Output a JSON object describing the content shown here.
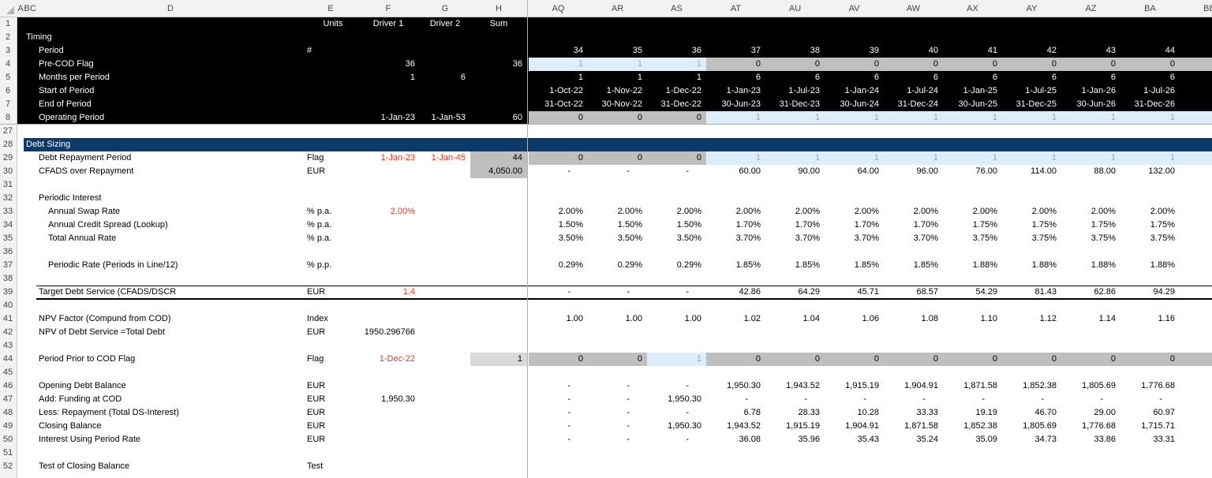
{
  "columns": [
    "A",
    "B",
    "C",
    "D",
    "E",
    "F",
    "G",
    "H",
    "AQ",
    "AR",
    "AS",
    "AT",
    "AU",
    "AV",
    "AW",
    "AX",
    "AY",
    "AZ",
    "BA",
    "BB"
  ],
  "rows": [
    {
      "row": "1",
      "cells": {
        "E": "Units",
        "F": "Driver 1",
        "G": "Driver 2",
        "H": "Sum"
      }
    },
    {
      "row": "2",
      "cells": {
        "B": "Timing"
      }
    },
    {
      "row": "3",
      "cells": {
        "D": "Period",
        "E": "#",
        "AQ": "34",
        "AR": "35",
        "AS": "36",
        "AT": "37",
        "AU": "38",
        "AV": "39",
        "AW": "40",
        "AX": "41",
        "AY": "42",
        "AZ": "43",
        "BA": "44"
      }
    },
    {
      "row": "4",
      "cells": {
        "D": "Pre-COD Flag",
        "F": "36",
        "H": "36",
        "AQ": "1",
        "AR": "1",
        "AS": "1",
        "AT": "0",
        "AU": "0",
        "AV": "0",
        "AW": "0",
        "AX": "0",
        "AY": "0",
        "AZ": "0",
        "BA": "0"
      }
    },
    {
      "row": "5",
      "cells": {
        "D": "Months per Period",
        "F": "1",
        "G": "6",
        "AQ": "1",
        "AR": "1",
        "AS": "1",
        "AT": "6",
        "AU": "6",
        "AV": "6",
        "AW": "6",
        "AX": "6",
        "AY": "6",
        "AZ": "6",
        "BA": "6"
      }
    },
    {
      "row": "6",
      "cells": {
        "D": "Start of Period",
        "AQ": "1-Oct-22",
        "AR": "1-Nov-22",
        "AS": "1-Dec-22",
        "AT": "1-Jan-23",
        "AU": "1-Jul-23",
        "AV": "1-Jan-24",
        "AW": "1-Jul-24",
        "AX": "1-Jan-25",
        "AY": "1-Jul-25",
        "AZ": "1-Jan-26",
        "BA": "1-Jul-26"
      }
    },
    {
      "row": "7",
      "cells": {
        "D": "End of Period",
        "AQ": "31-Oct-22",
        "AR": "30-Nov-22",
        "AS": "31-Dec-22",
        "AT": "30-Jun-23",
        "AU": "31-Dec-23",
        "AV": "30-Jun-24",
        "AW": "31-Dec-24",
        "AX": "30-Jun-25",
        "AY": "31-Dec-25",
        "AZ": "30-Jun-26",
        "BA": "31-Dec-26"
      }
    },
    {
      "row": "8",
      "cells": {
        "D": "Operating Period",
        "F": "1-Jan-23",
        "G": "1-Jan-53",
        "H": "60",
        "AQ": "0",
        "AR": "0",
        "AS": "0",
        "AT": "1",
        "AU": "1",
        "AV": "1",
        "AW": "1",
        "AX": "1",
        "AY": "1",
        "AZ": "1",
        "BA": "1"
      }
    },
    {
      "row": "27",
      "cells": {}
    },
    {
      "row": "28",
      "cells": {
        "B": "Debt Sizing"
      }
    },
    {
      "row": "29",
      "cells": {
        "D": "Debt Repayment Period",
        "E": "Flag",
        "F": "1-Jan-23",
        "G": "1-Jan-45",
        "H": "44",
        "AQ": "0",
        "AR": "0",
        "AS": "0",
        "AT": "1",
        "AU": "1",
        "AV": "1",
        "AW": "1",
        "AX": "1",
        "AY": "1",
        "AZ": "1",
        "BA": "1"
      }
    },
    {
      "row": "30",
      "cells": {
        "D": "CFADS over Repayment",
        "E": "EUR",
        "H": "4,050.00",
        "AQ": "-",
        "AR": "-",
        "AS": "-",
        "AT": "60.00",
        "AU": "90.00",
        "AV": "64.00",
        "AW": "96.00",
        "AX": "76.00",
        "AY": "114.00",
        "AZ": "88.00",
        "BA": "132.00"
      }
    },
    {
      "row": "31",
      "cells": {}
    },
    {
      "row": "32",
      "cells": {
        "D": "Periodic Interest"
      }
    },
    {
      "row": "33",
      "cells": {
        "D": "Annual Swap Rate",
        "E": "% p.a.",
        "F": "2.00%",
        "AQ": "2.00%",
        "AR": "2.00%",
        "AS": "2.00%",
        "AT": "2.00%",
        "AU": "2.00%",
        "AV": "2.00%",
        "AW": "2.00%",
        "AX": "2.00%",
        "AY": "2.00%",
        "AZ": "2.00%",
        "BA": "2.00%"
      }
    },
    {
      "row": "34",
      "cells": {
        "D": "Annual Credit Spread (Lookup)",
        "E": "% p.a.",
        "AQ": "1.50%",
        "AR": "1.50%",
        "AS": "1.50%",
        "AT": "1.70%",
        "AU": "1.70%",
        "AV": "1.70%",
        "AW": "1.70%",
        "AX": "1.75%",
        "AY": "1.75%",
        "AZ": "1.75%",
        "BA": "1.75%"
      }
    },
    {
      "row": "35",
      "cells": {
        "D": "Total Annual Rate",
        "E": "% p.a.",
        "AQ": "3.50%",
        "AR": "3.50%",
        "AS": "3.50%",
        "AT": "3.70%",
        "AU": "3.70%",
        "AV": "3.70%",
        "AW": "3.70%",
        "AX": "3.75%",
        "AY": "3.75%",
        "AZ": "3.75%",
        "BA": "3.75%"
      }
    },
    {
      "row": "36",
      "cells": {}
    },
    {
      "row": "37",
      "cells": {
        "D": "Periodic Rate (Periods in Line/12)",
        "E": "% p.p.",
        "AQ": "0.29%",
        "AR": "0.29%",
        "AS": "0.29%",
        "AT": "1.85%",
        "AU": "1.85%",
        "AV": "1.85%",
        "AW": "1.85%",
        "AX": "1.88%",
        "AY": "1.88%",
        "AZ": "1.88%",
        "BA": "1.88%"
      }
    },
    {
      "row": "38",
      "cells": {}
    },
    {
      "row": "39",
      "cells": {
        "D": "Target Debt Service (CFADS/DSCR",
        "E": "EUR",
        "F": "1.4",
        "AQ": "-",
        "AR": "-",
        "AS": "-",
        "AT": "42.86",
        "AU": "64.29",
        "AV": "45.71",
        "AW": "68.57",
        "AX": "54.29",
        "AY": "81.43",
        "AZ": "62.86",
        "BA": "94.29"
      }
    },
    {
      "row": "40",
      "cells": {}
    },
    {
      "row": "41",
      "cells": {
        "D": "NPV Factor (Compund from COD)",
        "E": "Index",
        "AQ": "1.00",
        "AR": "1.00",
        "AS": "1.00",
        "AT": "1.02",
        "AU": "1.04",
        "AV": "1.06",
        "AW": "1.08",
        "AX": "1.10",
        "AY": "1.12",
        "AZ": "1.14",
        "BA": "1.16"
      }
    },
    {
      "row": "42",
      "cells": {
        "D": "NPV of Debt Service =Total Debt",
        "E": "EUR",
        "F": "1950.296766"
      }
    },
    {
      "row": "43",
      "cells": {}
    },
    {
      "row": "44",
      "cells": {
        "D": "Period Prior to COD Flag",
        "E": "Flag",
        "F": "1-Dec-22",
        "H": "1",
        "AQ": "0",
        "AR": "0",
        "AS": "1",
        "AT": "0",
        "AU": "0",
        "AV": "0",
        "AW": "0",
        "AX": "0",
        "AY": "0",
        "AZ": "0",
        "BA": "0"
      }
    },
    {
      "row": "45",
      "cells": {}
    },
    {
      "row": "46",
      "cells": {
        "D": "Opening Debt Balance",
        "E": "EUR",
        "AQ": "-",
        "AR": "-",
        "AS": "-",
        "AT": "1,950.30",
        "AU": "1,943.52",
        "AV": "1,915.19",
        "AW": "1,904.91",
        "AX": "1,871.58",
        "AY": "1,852.38",
        "AZ": "1,805.69",
        "BA": "1,776.68"
      }
    },
    {
      "row": "47",
      "cells": {
        "D": "Add: Funding at COD",
        "E": "EUR",
        "F": "1,950.30",
        "AQ": "-",
        "AR": "-",
        "AS": "1,950.30",
        "AT": "-",
        "AU": "-",
        "AV": "-",
        "AW": "-",
        "AX": "-",
        "AY": "-",
        "AZ": "-",
        "BA": "-"
      }
    },
    {
      "row": "48",
      "cells": {
        "D": "Less: Repayment (Total DS-Interest)",
        "E": "EUR",
        "AQ": "-",
        "AR": "-",
        "AS": "-",
        "AT": "6.78",
        "AU": "28.33",
        "AV": "10.28",
        "AW": "33.33",
        "AX": "19.19",
        "AY": "46.70",
        "AZ": "29.00",
        "BA": "60.97"
      }
    },
    {
      "row": "49",
      "cells": {
        "D": "Closing Balance",
        "E": "EUR",
        "AQ": "-",
        "AR": "-",
        "AS": "1,950.30",
        "AT": "1,943.52",
        "AU": "1,915.19",
        "AV": "1,904.91",
        "AW": "1,871.58",
        "AX": "1,852.38",
        "AY": "1,805.69",
        "AZ": "1,776.68",
        "BA": "1,715.71"
      }
    },
    {
      "row": "50",
      "cells": {
        "D": "Interest Using Period Rate",
        "E": "EUR",
        "AQ": "-",
        "AR": "-",
        "AS": "-",
        "AT": "36.08",
        "AU": "35.96",
        "AV": "35.43",
        "AW": "35.24",
        "AX": "35.09",
        "AY": "34.73",
        "AZ": "33.86",
        "BA": "33.31"
      }
    },
    {
      "row": "51",
      "cells": {}
    },
    {
      "row": "52",
      "cells": {
        "D": "Test of Closing Balance",
        "E": "Test"
      }
    }
  ]
}
